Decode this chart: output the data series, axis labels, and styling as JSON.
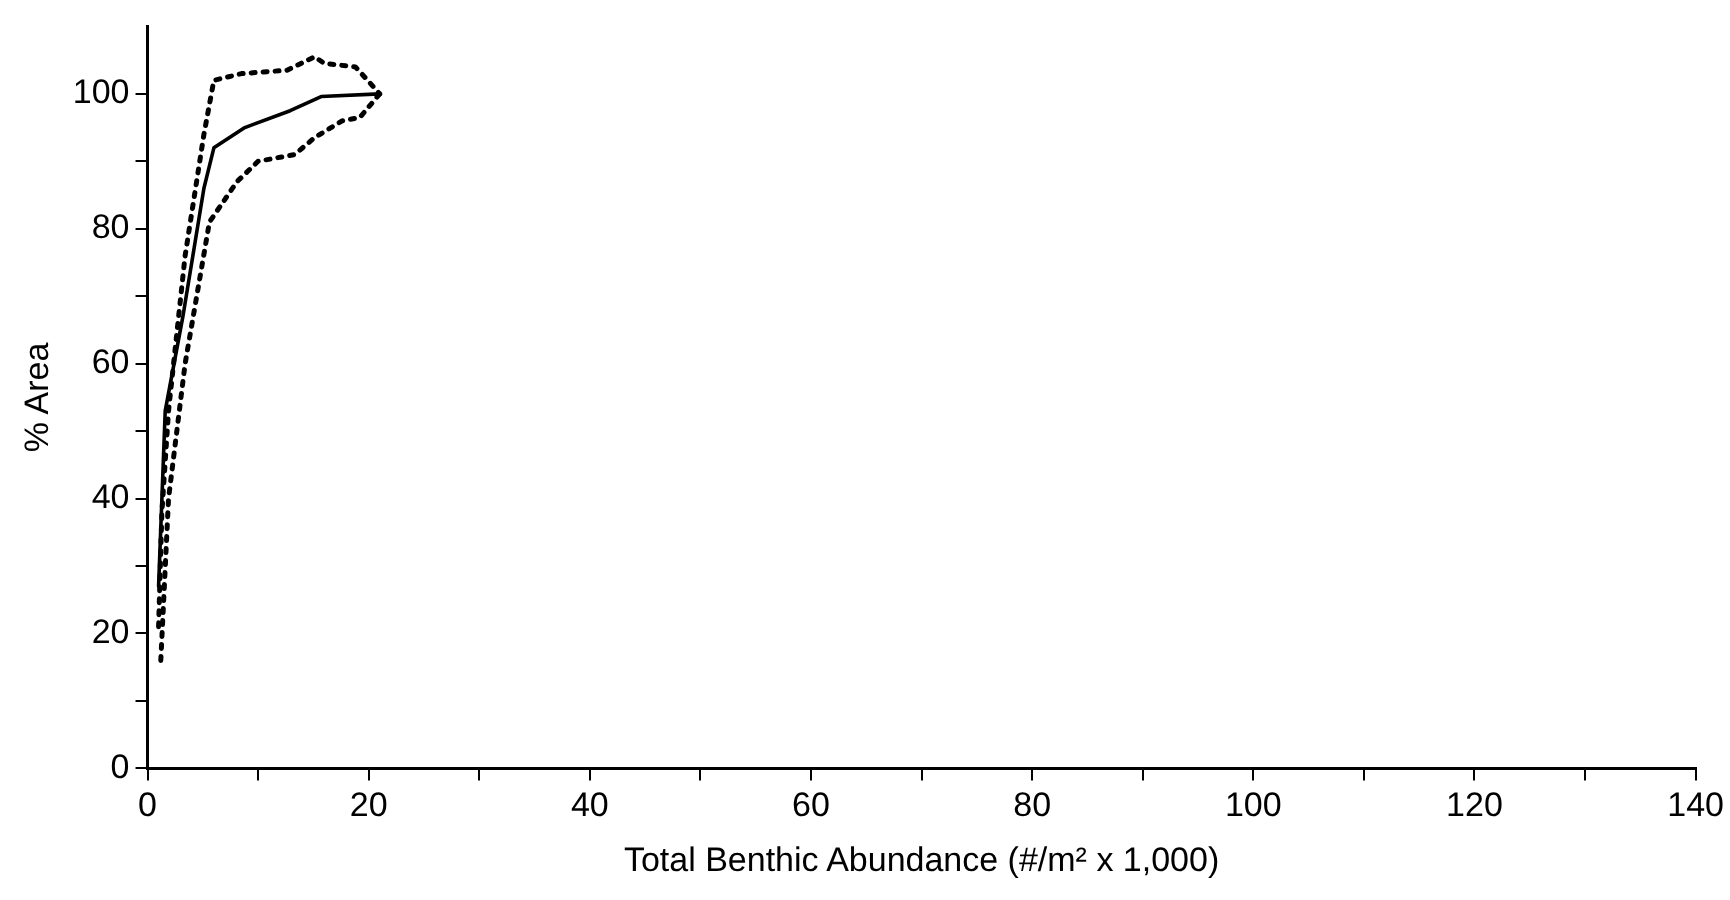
{
  "chart_data": {
    "type": "line",
    "xlabel": "Total Benthic Abundance (#/m² x 1,000)",
    "ylabel": "% Area",
    "xlim": [
      0,
      140
    ],
    "xticks": [
      0,
      {
        "value": 10,
        "label": null
      },
      20,
      {
        "value": 30,
        "label": null
      },
      40,
      {
        "value": 50,
        "label": null
      },
      60,
      {
        "value": 70,
        "label": null
      },
      80,
      {
        "value": 90,
        "label": null
      },
      100,
      {
        "value": 110,
        "label": null
      },
      120,
      {
        "value": 130,
        "label": null
      },
      140
    ],
    "ylim": [
      0,
      110
    ],
    "yticks": [
      0,
      {
        "value": 10,
        "label": null
      },
      20,
      {
        "value": 30,
        "label": null
      },
      40,
      {
        "value": 50,
        "label": null
      },
      60,
      {
        "value": 70,
        "label": null
      },
      80,
      {
        "value": 90,
        "label": null
      },
      100
    ],
    "grid": false,
    "legend": false,
    "marker": "none",
    "series": [
      {
        "color": "#000000",
        "line_style": "solid",
        "x": [
          1.0,
          1.6,
          3.2,
          5.1,
          6.0,
          8.8,
          12.9,
          15.7,
          21
        ],
        "values": [
          27,
          53,
          67,
          86,
          92,
          95,
          97.5,
          99.6,
          100
        ]
      },
      {
        "color": "#000000",
        "line_style": "dotted",
        "x": [
          1.0,
          1.3,
          1.9,
          3.4,
          5.1,
          6.0,
          8.5,
          12.6,
          15.1,
          16.0,
          18.8,
          21
        ],
        "values": [
          21,
          38,
          53,
          76,
          94,
          102,
          103,
          103.5,
          105.5,
          104.5,
          104,
          100
        ]
      },
      {
        "color": "#000000",
        "line_style": "dotted",
        "x": [
          1.2,
          1.9,
          3.4,
          5.6,
          8.1,
          10,
          13.3,
          15.1,
          17.6,
          19.2,
          21
        ],
        "values": [
          16,
          40,
          60,
          81,
          87,
          90,
          91,
          93.5,
          96,
          96.5,
          100
        ]
      }
    ]
  }
}
